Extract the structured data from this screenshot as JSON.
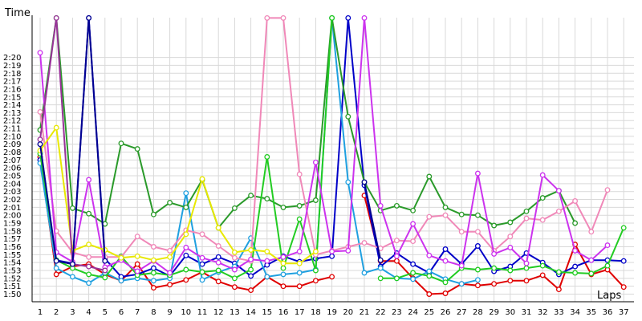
{
  "chart_data": {
    "type": "line",
    "ylabel": "Time",
    "xlabel": "Laps",
    "x_ticks": [
      "1",
      "2",
      "3",
      "4",
      "5",
      "6",
      "7",
      "8",
      "9",
      "10",
      "11",
      "12",
      "13",
      "14",
      "15",
      "16",
      "17",
      "18",
      "19",
      "20",
      "21",
      "22",
      "23",
      "24",
      "25",
      "26",
      "27",
      "28",
      "29",
      "30",
      "31",
      "32",
      "33",
      "34",
      "35",
      "36",
      "37"
    ],
    "y_ticks": [
      "1:50",
      "1:51",
      "1:52",
      "1:53",
      "1:54",
      "1:55",
      "1:56",
      "1:57",
      "1:58",
      "1:59",
      "2:00",
      "2:01",
      "2:02",
      "2:03",
      "2:04",
      "2:05",
      "2:06",
      "2:07",
      "2:08",
      "2:09",
      "2:10",
      "2:11",
      "2:12",
      "2:13",
      "2:14",
      "2:15",
      "2:16",
      "2:17",
      "2:18",
      "2:19",
      "2:20"
    ],
    "y_unit": "seconds",
    "ylim": [
      108,
      145
    ],
    "xlim": [
      1,
      37
    ],
    "grid": true,
    "legend": "none",
    "series": [
      {
        "color": "#e00000",
        "values": [
          127.4,
          112.5,
          113.5,
          113.8,
          112.5,
          111.7,
          113.8,
          110.8,
          111.2,
          111.8,
          112.8,
          111.6,
          110.9,
          110.5,
          112.2,
          111.0,
          111.0,
          111.7,
          112.2,
          null,
          122.5,
          114.2,
          114.2,
          112.0,
          110.0,
          110.1,
          111.3,
          111.1,
          111.3,
          111.7,
          111.7,
          112.4,
          110.6,
          116.3,
          112.5,
          113.1,
          110.9
        ]
      },
      {
        "color": "#0000c8",
        "values": [
          127.0,
          114.3,
          113.9,
          145.0,
          114.5,
          112.2,
          112.5,
          113.3,
          112.3,
          114.9,
          113.8,
          114.7,
          113.9,
          112.3,
          113.7,
          114.8,
          114.1,
          114.5,
          114.8,
          145.0,
          123.8,
          113.5,
          115.2,
          113.8,
          112.7,
          115.7,
          113.8,
          116.1,
          112.9,
          113.5,
          115.2,
          114.0,
          112.5,
          113.5,
          114.3,
          114.3,
          114.2
        ]
      },
      {
        "color": "#1fa0e0",
        "values": [
          126.6,
          113.3,
          112.2,
          111.4,
          112.7,
          111.7,
          112.0,
          111.7,
          112.0,
          122.8,
          111.8,
          112.8,
          113.5,
          117.1,
          112.2,
          112.5,
          112.7,
          113.1,
          145.0,
          124.2,
          112.7,
          113.3,
          112.0,
          111.9,
          112.9,
          111.9,
          111.3,
          111.8,
          null,
          null,
          null,
          null,
          null,
          null,
          null,
          null,
          null
        ]
      },
      {
        "color": "#2a9a2a",
        "values": [
          130.8,
          145.0,
          120.9,
          120.2,
          118.9,
          129.1,
          128.4,
          120.1,
          121.6,
          121.0,
          124.5,
          118.4,
          120.9,
          122.5,
          122.1,
          121.0,
          121.2,
          121.9,
          145.0,
          132.5,
          124.2,
          120.6,
          121.2,
          120.6,
          124.9,
          121.0,
          120.1,
          120.0,
          118.7,
          119.1,
          120.5,
          122.2,
          123.1,
          119.0,
          null,
          null,
          null
        ]
      },
      {
        "color": "#22cc22",
        "values": [
          127.8,
          114.3,
          113.3,
          112.5,
          112.1,
          114.8,
          112.4,
          112.7,
          112.4,
          113.1,
          112.8,
          113.0,
          112.0,
          113.1,
          127.4,
          113.3,
          119.5,
          113.0,
          145.0,
          null,
          null,
          112.0,
          112.0,
          112.7,
          112.3,
          111.5,
          113.3,
          113.1,
          113.3,
          113.0,
          113.3,
          113.6,
          112.8,
          112.7,
          112.6,
          113.6,
          118.4
        ]
      },
      {
        "color": "#f088b8",
        "values": [
          133.1,
          118.0,
          115.3,
          114.7,
          114.7,
          114.7,
          117.3,
          116.0,
          115.5,
          118.1,
          117.6,
          116.1,
          114.6,
          114.2,
          145.0,
          145.0,
          125.2,
          115.0,
          115.5,
          116.0,
          116.5,
          115.8,
          116.8,
          116.7,
          119.8,
          120.0,
          117.9,
          117.9,
          115.5,
          117.3,
          119.6,
          119.4,
          120.5,
          121.8,
          117.9,
          123.2,
          null
        ]
      },
      {
        "color": "#cc33ee",
        "values": [
          140.6,
          115.3,
          114.1,
          124.5,
          113.4,
          114.3,
          112.9,
          114.2,
          112.7,
          115.9,
          114.6,
          114.0,
          113.1,
          114.4,
          114.2,
          114.7,
          115.4,
          126.7,
          115.4,
          115.5,
          145.0,
          121.2,
          114.8,
          118.9,
          114.9,
          114.2,
          113.6,
          125.3,
          115.1,
          115.9,
          113.9,
          125.1,
          123.1,
          115.5,
          114.3,
          116.2,
          null
        ]
      },
      {
        "color": "#e8e800",
        "values": [
          128.2,
          131.1,
          115.5,
          116.3,
          115.6,
          114.6,
          114.8,
          114.3,
          114.7,
          117.6,
          124.6,
          118.4,
          115.3,
          115.6,
          115.4,
          113.9,
          113.9,
          115.4,
          null,
          null,
          null,
          null,
          null,
          null,
          null,
          null,
          null,
          null,
          null,
          null,
          null,
          null,
          null,
          null,
          null,
          null,
          null
        ]
      },
      {
        "color": "#993399",
        "values": [
          129.6,
          145.0,
          113.8,
          113.5,
          113.0,
          null,
          null,
          null,
          null,
          null,
          null,
          null,
          null,
          null,
          null,
          null,
          null,
          null,
          null,
          null,
          null,
          null,
          null,
          null,
          null,
          null,
          null,
          null,
          null,
          null,
          null,
          null,
          null,
          null,
          null,
          null,
          null
        ]
      },
      {
        "color": "#000090",
        "values": [
          129.0,
          114.2,
          113.8,
          145.0,
          114.2,
          null,
          null,
          null,
          null,
          null,
          null,
          null,
          null,
          null,
          null,
          null,
          null,
          null,
          null,
          null,
          124.2,
          114.3,
          null,
          null,
          null,
          null,
          null,
          null,
          null,
          null,
          null,
          null,
          null,
          null,
          null,
          null,
          null
        ]
      }
    ]
  }
}
